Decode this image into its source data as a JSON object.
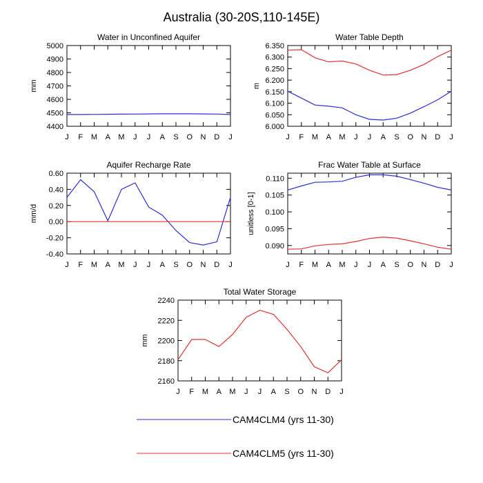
{
  "title": "Australia (30-20S,110-145E)",
  "months": [
    "J",
    "F",
    "M",
    "A",
    "M",
    "J",
    "J",
    "A",
    "S",
    "O",
    "N",
    "D",
    "J"
  ],
  "series_colors": {
    "CAM4CLM4 (yrs 11-30)": "#2b2bd6",
    "CAM4CLM5 (yrs 11-30)": "#e03030"
  },
  "legend": [
    {
      "name": "CAM4CLM4 (yrs 11-30)",
      "color": "#2b2bd6"
    },
    {
      "name": "CAM4CLM5 (yrs 11-30)",
      "color": "#e03030"
    }
  ],
  "chart_data": [
    {
      "type": "line",
      "title": "Water in Unconfined Aquifer",
      "xlabel": "",
      "ylabel": "mm",
      "ylim": [
        4400,
        5000
      ],
      "yticks": [
        4400,
        4500,
        4600,
        4700,
        4800,
        4900,
        5000
      ],
      "ytick_labels": [
        "4400",
        "4500",
        "4600",
        "4700",
        "4800",
        "4900",
        "5000"
      ],
      "categories": [
        "J",
        "F",
        "M",
        "A",
        "M",
        "J",
        "J",
        "A",
        "S",
        "O",
        "N",
        "D",
        "J"
      ],
      "series": [
        {
          "name": "CAM4CLM4 (yrs 11-30)",
          "color": "#2b2bd6",
          "values": [
            4487,
            4487,
            4488,
            4489,
            4490,
            4491,
            4492,
            4493,
            4493,
            4493,
            4492,
            4491,
            4487
          ]
        }
      ]
    },
    {
      "type": "line",
      "title": "Water Table Depth",
      "xlabel": "",
      "ylabel": "m",
      "ylim": [
        6.0,
        6.35
      ],
      "yticks": [
        6.0,
        6.05,
        6.1,
        6.15,
        6.2,
        6.25,
        6.3,
        6.35
      ],
      "ytick_labels": [
        "6.000",
        "6.050",
        "6.100",
        "6.150",
        "6.200",
        "6.250",
        "6.300",
        "6.350"
      ],
      "categories": [
        "J",
        "F",
        "M",
        "A",
        "M",
        "J",
        "J",
        "A",
        "S",
        "O",
        "N",
        "D",
        "J"
      ],
      "series": [
        {
          "name": "CAM4CLM4 (yrs 11-30)",
          "color": "#2b2bd6",
          "values": [
            6.152,
            6.122,
            6.092,
            6.087,
            6.08,
            6.05,
            6.03,
            6.027,
            6.035,
            6.057,
            6.085,
            6.115,
            6.152
          ]
        },
        {
          "name": "CAM4CLM5 (yrs 11-30)",
          "color": "#e03030",
          "values": [
            6.33,
            6.332,
            6.297,
            6.279,
            6.283,
            6.27,
            6.243,
            6.222,
            6.224,
            6.243,
            6.268,
            6.302,
            6.33
          ]
        }
      ]
    },
    {
      "type": "line",
      "title": "Aquifer Recharge Rate",
      "xlabel": "",
      "ylabel": "mm/d",
      "ylim": [
        -0.4,
        0.6
      ],
      "yticks": [
        -0.4,
        -0.2,
        0.0,
        0.2,
        0.4,
        0.6
      ],
      "ytick_labels": [
        "-0.40",
        "-0.20",
        "0.00",
        "0.20",
        "0.40",
        "0.60"
      ],
      "categories": [
        "J",
        "F",
        "M",
        "A",
        "M",
        "J",
        "J",
        "A",
        "S",
        "O",
        "N",
        "D",
        "J"
      ],
      "series": [
        {
          "name": "CAM4CLM4 (yrs 11-30)",
          "color": "#2b2bd6",
          "values": [
            0.3,
            0.52,
            0.37,
            0.01,
            0.4,
            0.48,
            0.18,
            0.08,
            -0.11,
            -0.26,
            -0.29,
            -0.25,
            0.3
          ]
        },
        {
          "name": "CAM4CLM5 (yrs 11-30)",
          "color": "#e03030",
          "values": [
            0.0,
            0.0,
            0.0,
            0.0,
            0.0,
            0.0,
            0.0,
            0.0,
            0.0,
            0.0,
            0.0,
            0.0,
            0.0
          ]
        }
      ]
    },
    {
      "type": "line",
      "title": "Frac Water Table at Surface",
      "xlabel": "",
      "ylabel": "unitless [0-1]",
      "ylim": [
        0.0875,
        0.1115
      ],
      "yticks": [
        0.09,
        0.095,
        0.1,
        0.105,
        0.11
      ],
      "ytick_labels": [
        "0.090",
        "0.095",
        "0.100",
        "0.105",
        "0.110"
      ],
      "categories": [
        "J",
        "F",
        "M",
        "A",
        "M",
        "J",
        "J",
        "A",
        "S",
        "O",
        "N",
        "D",
        "J"
      ],
      "series": [
        {
          "name": "CAM4CLM4 (yrs 11-30)",
          "color": "#2b2bd6",
          "values": [
            0.1065,
            0.1077,
            0.1088,
            0.1089,
            0.1091,
            0.1103,
            0.111,
            0.111,
            0.1106,
            0.1096,
            0.1085,
            0.1073,
            0.1065
          ]
        },
        {
          "name": "CAM4CLM5 (yrs 11-30)",
          "color": "#e03030",
          "values": [
            0.0889,
            0.089,
            0.0899,
            0.0903,
            0.0905,
            0.0912,
            0.0921,
            0.0925,
            0.0922,
            0.0914,
            0.0905,
            0.0895,
            0.0889
          ]
        }
      ]
    },
    {
      "type": "line",
      "title": "Total Water Storage",
      "xlabel": "",
      "ylabel": "mm",
      "ylim": [
        2160,
        2240
      ],
      "yticks": [
        2160,
        2180,
        2200,
        2220,
        2240
      ],
      "ytick_labels": [
        "2160",
        "2180",
        "2200",
        "2220",
        "2240"
      ],
      "categories": [
        "J",
        "F",
        "M",
        "A",
        "M",
        "J",
        "J",
        "A",
        "S",
        "O",
        "N",
        "D",
        "J"
      ],
      "series": [
        {
          "name": "CAM4CLM5 (yrs 11-30)",
          "color": "#e03030",
          "values": [
            2181,
            2201,
            2201,
            2194,
            2206,
            2223,
            2230,
            2226,
            2211,
            2194,
            2174,
            2168,
            2181
          ]
        }
      ]
    }
  ]
}
